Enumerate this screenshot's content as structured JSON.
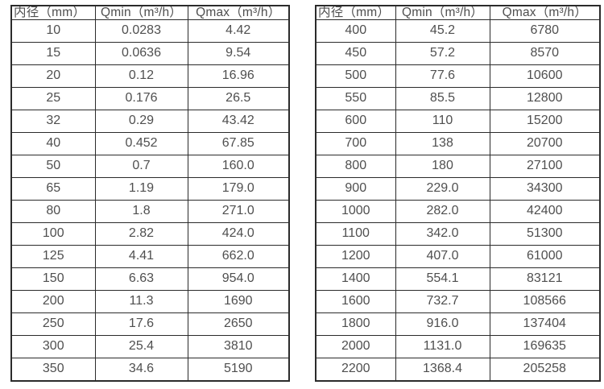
{
  "colors": {
    "border": "#2b2b2b",
    "text": "#4f4f4f",
    "background": "#ffffff"
  },
  "tables": [
    {
      "name": "flow-rate-table-small-diameter",
      "headers": [
        "内径（mm）",
        "Qmin（m³/h）",
        "Qmax（m³/h）"
      ],
      "rows": [
        [
          "10",
          "0.0283",
          "4.42"
        ],
        [
          "15",
          "0.0636",
          "9.54"
        ],
        [
          "20",
          "0.12",
          "16.96"
        ],
        [
          "25",
          "0.176",
          "26.5"
        ],
        [
          "32",
          "0.29",
          "43.42"
        ],
        [
          "40",
          "0.452",
          "67.85"
        ],
        [
          "50",
          "0.7",
          "160.0"
        ],
        [
          "65",
          "1.19",
          "179.0"
        ],
        [
          "80",
          "1.8",
          "271.0"
        ],
        [
          "100",
          "2.82",
          "424.0"
        ],
        [
          "125",
          "4.41",
          "662.0"
        ],
        [
          "150",
          "6.63",
          "954.0"
        ],
        [
          "200",
          "11.3",
          "1690"
        ],
        [
          "250",
          "17.6",
          "2650"
        ],
        [
          "300",
          "25.4",
          "3810"
        ],
        [
          "350",
          "34.6",
          "5190"
        ]
      ]
    },
    {
      "name": "flow-rate-table-large-diameter",
      "headers": [
        "内径（mm）",
        "Qmin（m³/h）",
        "Qmax（m³/h）"
      ],
      "rows": [
        [
          "400",
          "45.2",
          "6780"
        ],
        [
          "450",
          "57.2",
          "8570"
        ],
        [
          "500",
          "77.6",
          "10600"
        ],
        [
          "550",
          "85.5",
          "12800"
        ],
        [
          "600",
          "110",
          "15200"
        ],
        [
          "700",
          "138",
          "20700"
        ],
        [
          "800",
          "180",
          "27100"
        ],
        [
          "900",
          "229.0",
          "34300"
        ],
        [
          "1000",
          "282.0",
          "42400"
        ],
        [
          "1100",
          "342.0",
          "51300"
        ],
        [
          "1200",
          "407.0",
          "61000"
        ],
        [
          "1400",
          "554.1",
          "83121"
        ],
        [
          "1600",
          "732.7",
          "108566"
        ],
        [
          "1800",
          "916.0",
          "137404"
        ],
        [
          "2000",
          "1131.0",
          "169635"
        ],
        [
          "2200",
          "1368.4",
          "205258"
        ]
      ]
    }
  ]
}
